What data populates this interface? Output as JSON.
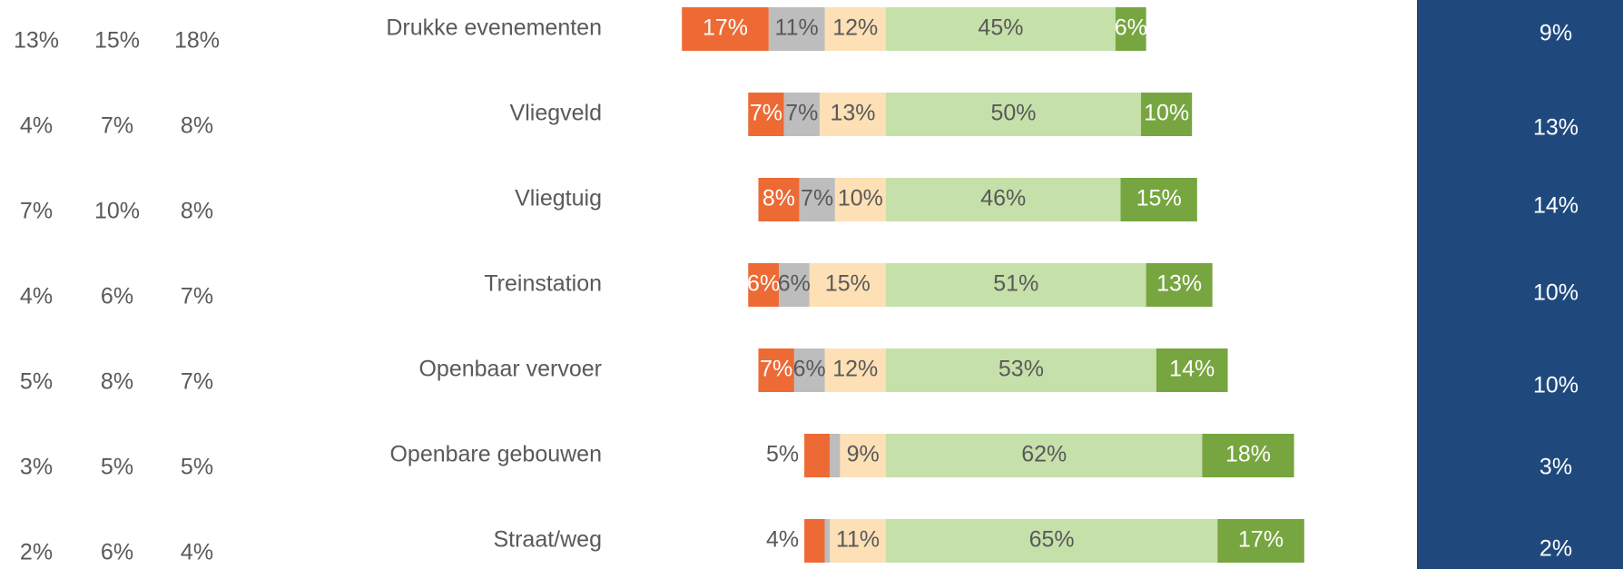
{
  "chart_data": {
    "type": "diverging_bar",
    "categories": [
      "Drukke evenementen",
      "Vliegveld",
      "Vliegtuig",
      "Treinstation",
      "Openbaar vervoer",
      "Openbare gebouwen",
      "Straat/weg"
    ],
    "negative_series": 3,
    "series": [
      {
        "color": "#ed6a35",
        "values": [
          17,
          7,
          8,
          6,
          7,
          5,
          4
        ],
        "value_labels": [
          "17%",
          "7%",
          "8%",
          "6%",
          "7%",
          "5%",
          "4%"
        ]
      },
      {
        "color": "#bdbdbd",
        "values": [
          11,
          7,
          7,
          6,
          6,
          2,
          1
        ],
        "value_labels": [
          "11%",
          "7%",
          "7%",
          "6%",
          "6%",
          null,
          null
        ]
      },
      {
        "color": "#fde0b5",
        "values": [
          12,
          13,
          10,
          15,
          12,
          9,
          11
        ],
        "value_labels": [
          "12%",
          "13%",
          "10%",
          "15%",
          "12%",
          "9%",
          "11%"
        ]
      },
      {
        "color": "#c6e0aa",
        "values": [
          45,
          50,
          46,
          51,
          53,
          62,
          65
        ],
        "value_labels": [
          "45%",
          "50%",
          "46%",
          "51%",
          "53%",
          "62%",
          "65%"
        ]
      },
      {
        "color": "#77a540",
        "values": [
          6,
          10,
          15,
          13,
          14,
          18,
          17
        ],
        "value_labels": [
          "6%",
          "10%",
          "15%",
          "13%",
          "14%",
          "18%",
          "17%"
        ]
      }
    ],
    "left_table": [
      [
        "13%",
        "15%",
        "18%"
      ],
      [
        "4%",
        "7%",
        "8%"
      ],
      [
        "7%",
        "10%",
        "8%"
      ],
      [
        "4%",
        "6%",
        "7%"
      ],
      [
        "5%",
        "8%",
        "7%"
      ],
      [
        "3%",
        "5%",
        "5%"
      ],
      [
        "2%",
        "6%",
        "4%"
      ]
    ],
    "right_column": [
      "9%",
      "13%",
      "14%",
      "10%",
      "10%",
      "3%",
      "2%"
    ]
  }
}
